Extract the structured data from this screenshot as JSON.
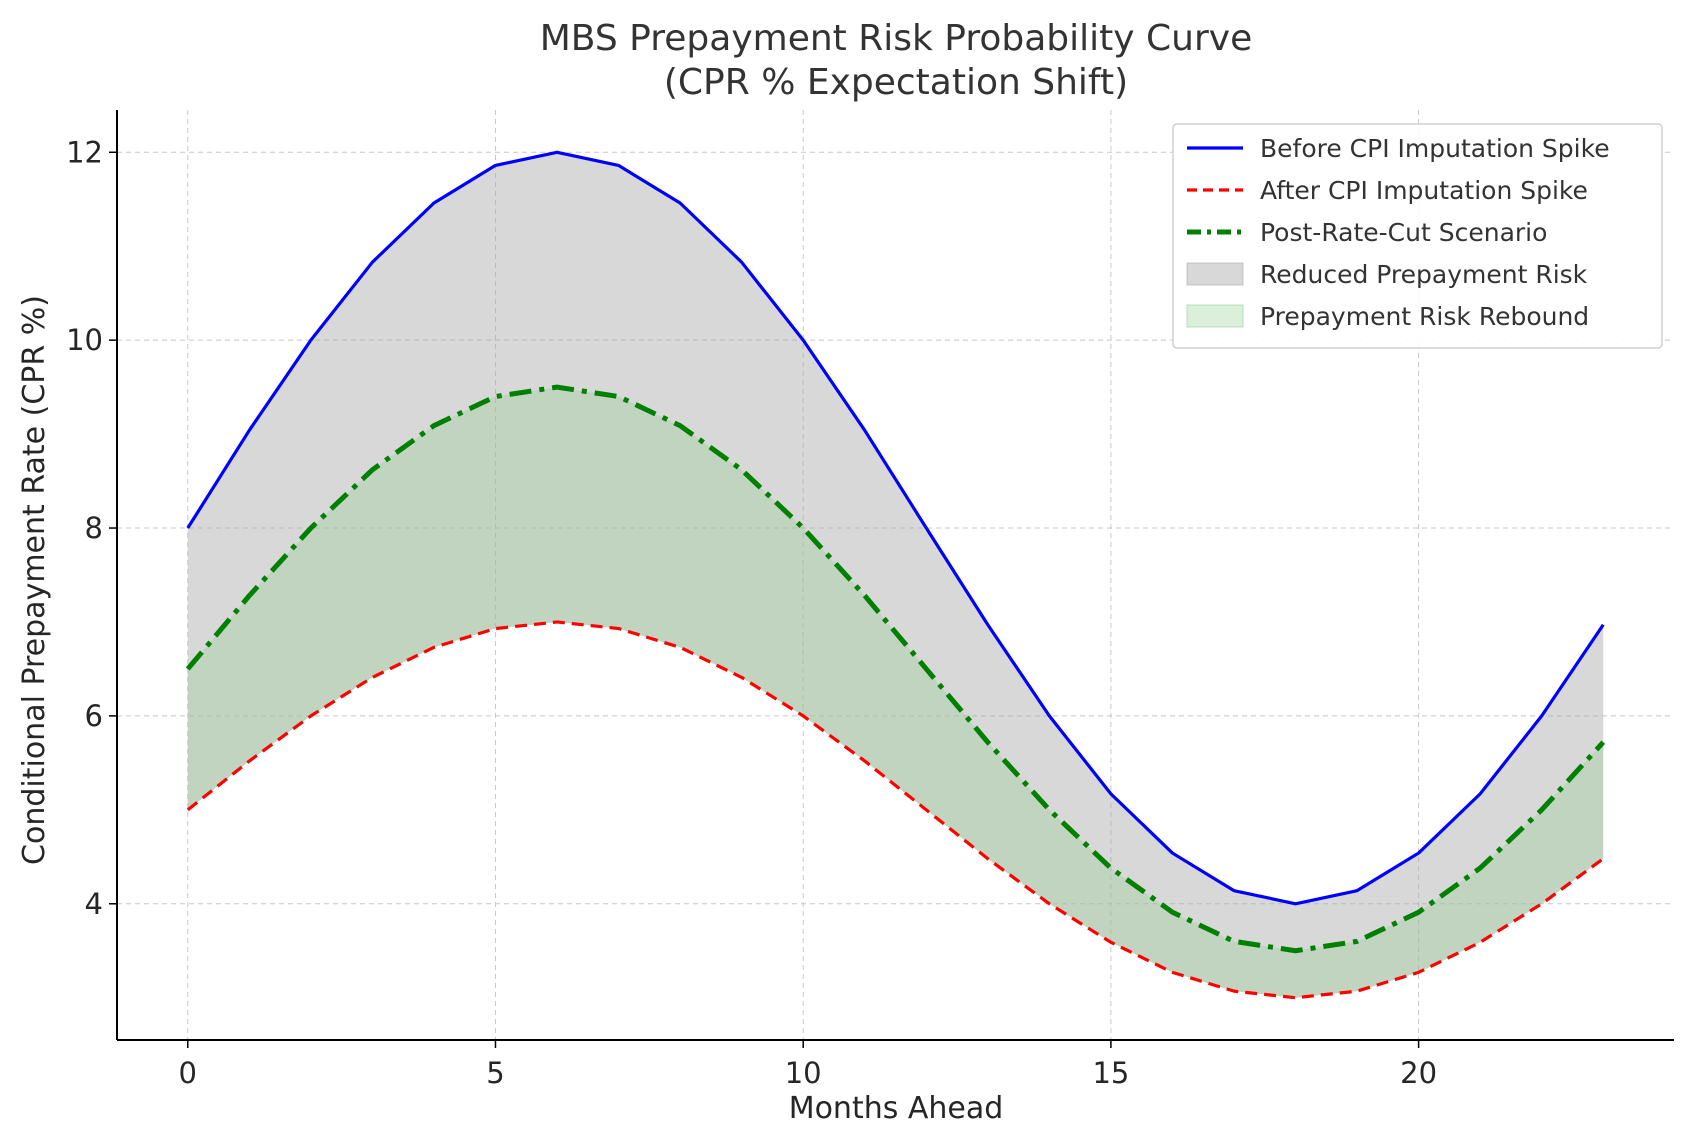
{
  "chart_data": {
    "type": "line",
    "title": "MBS Prepayment Risk Probability Curve",
    "subtitle": "(CPR % Expectation Shift)",
    "xlabel": "Months Ahead",
    "ylabel": "Conditional Prepayment Rate (CPR %)",
    "xlim": [
      -1.15,
      24.15
    ],
    "ylim": [
      2.55,
      12.45
    ],
    "xticks": [
      0,
      5,
      10,
      15,
      20
    ],
    "yticks": [
      4,
      6,
      8,
      10,
      12
    ],
    "grid": true,
    "legend_position": "top-right",
    "x": [
      0,
      1,
      2,
      3,
      4,
      5,
      6,
      7,
      8,
      9,
      10,
      11,
      12,
      13,
      14,
      15,
      16,
      17,
      18,
      19,
      20,
      21,
      22,
      23
    ],
    "series": [
      {
        "name": "Before CPI Imputation Spike",
        "style": "solid",
        "color": "#0000ff",
        "values": [
          8.0,
          9.04,
          10.0,
          10.83,
          11.46,
          11.86,
          12.0,
          11.86,
          11.46,
          10.83,
          10.0,
          9.04,
          8.0,
          6.97,
          6.0,
          5.17,
          4.54,
          4.14,
          4.0,
          4.14,
          4.54,
          5.17,
          6.0,
          6.97
        ]
      },
      {
        "name": "After CPI Imputation Spike",
        "style": "dashed",
        "color": "#ff0000",
        "values": [
          5.0,
          5.52,
          6.0,
          6.41,
          6.73,
          6.93,
          7.0,
          6.93,
          6.73,
          6.41,
          6.0,
          5.52,
          5.0,
          4.48,
          4.0,
          3.59,
          3.27,
          3.07,
          3.0,
          3.07,
          3.27,
          3.59,
          4.0,
          4.48
        ]
      },
      {
        "name": "Post-Rate-Cut Scenario",
        "style": "dashdot",
        "color": "#008000",
        "values": [
          6.5,
          7.28,
          8.0,
          8.62,
          9.09,
          9.4,
          9.5,
          9.4,
          9.09,
          8.62,
          8.0,
          7.28,
          6.5,
          5.72,
          5.0,
          4.38,
          3.91,
          3.6,
          3.5,
          3.6,
          3.91,
          4.38,
          5.0,
          5.72
        ]
      }
    ],
    "fills": [
      {
        "name": "Reduced Prepayment Risk",
        "between": [
          "Before CPI Imputation Spike",
          "After CPI Imputation Spike"
        ],
        "color": "#a9a9a9",
        "opacity": 0.45
      },
      {
        "name": "Prepayment Risk Rebound",
        "between": [
          "Post-Rate-Cut Scenario",
          "After CPI Imputation Spike"
        ],
        "color": "#8fce8f",
        "opacity": 0.32
      }
    ]
  }
}
